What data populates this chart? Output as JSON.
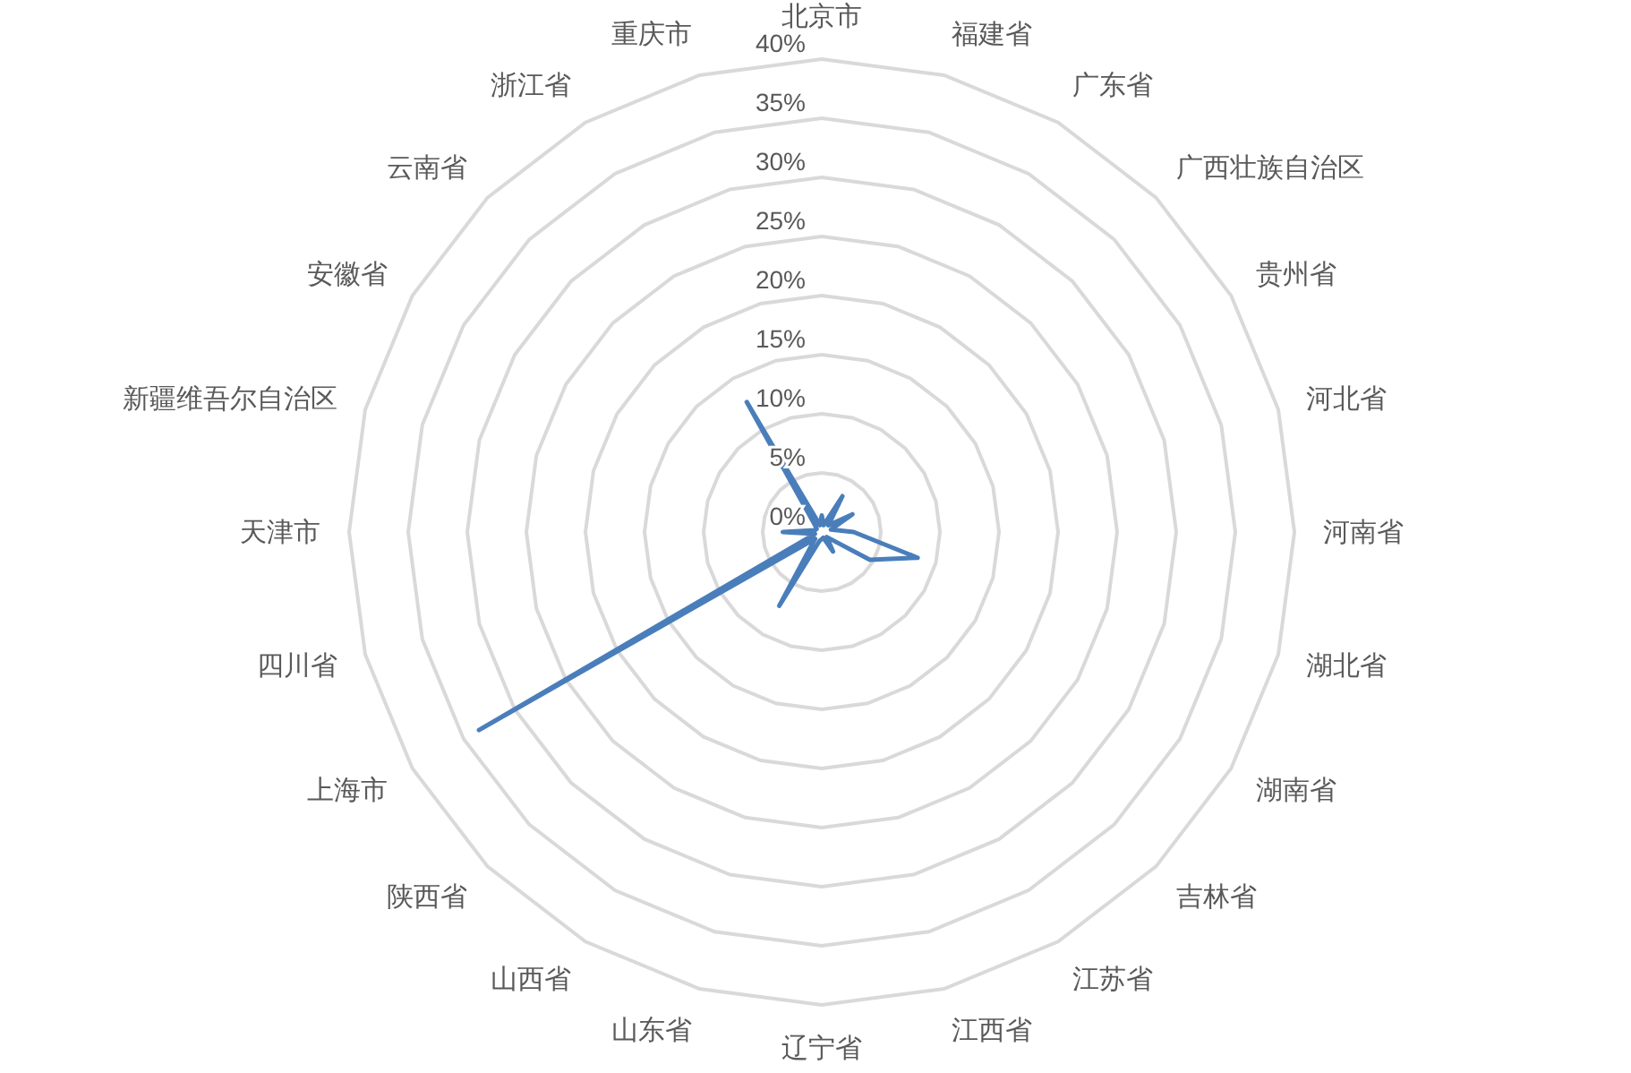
{
  "chart_data": {
    "type": "radar",
    "categories": [
      "北京市",
      "福建省",
      "广东省",
      "广西壮族自治区",
      "贵州省",
      "河北省",
      "河南省",
      "湖北省",
      "湖南省",
      "吉林省",
      "江苏省",
      "江西省",
      "辽宁省",
      "山东省",
      "山西省",
      "陕西省",
      "上海市",
      "四川省",
      "天津市",
      "新疆维吾尔自治区",
      "安徽省",
      "云南省",
      "浙江省",
      "重庆市"
    ],
    "series": [
      {
        "color": "#4a7ebb",
        "values": [
          1.4,
          0.6,
          3.5,
          0.8,
          3,
          0.8,
          2.7,
          8.4,
          4.7,
          0.6,
          1.9,
          0.5,
          0.6,
          0.8,
          7.2,
          0.8,
          33.5,
          0.6,
          3.3,
          0.6,
          0.5,
          0.8,
          12.7,
          0.6
        ]
      }
    ],
    "ylim": [
      0,
      40
    ],
    "yticks": [
      {
        "value": 0,
        "label": "0%"
      },
      {
        "value": 5,
        "label": "5%"
      },
      {
        "value": 10,
        "label": "10%"
      },
      {
        "value": 15,
        "label": "15%"
      },
      {
        "value": 20,
        "label": "20%"
      },
      {
        "value": 25,
        "label": "25%"
      },
      {
        "value": 30,
        "label": "30%"
      },
      {
        "value": 35,
        "label": "35%"
      },
      {
        "value": 40,
        "label": "40%"
      }
    ]
  }
}
